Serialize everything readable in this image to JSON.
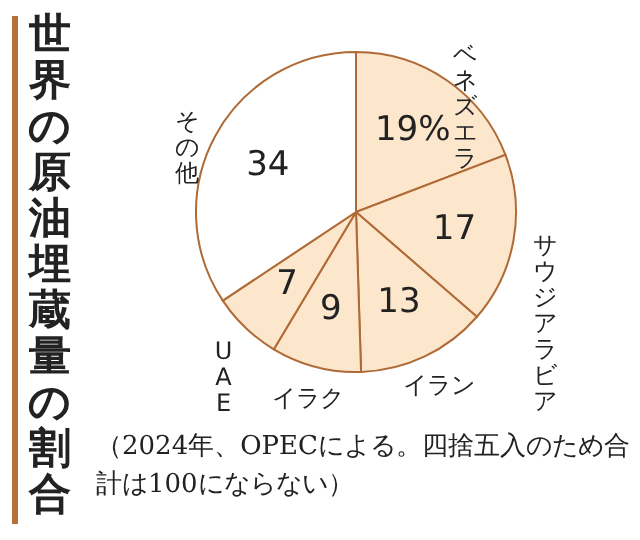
{
  "chart_data": {
    "type": "pie",
    "title": "世界の原油埋蔵量の割合",
    "categories": [
      "ベネズエラ",
      "サウジアラビア",
      "イラン",
      "イラク",
      "UAE",
      "その他"
    ],
    "values": [
      19,
      17,
      13,
      9,
      7,
      34
    ],
    "value_labels": [
      "19%",
      "17",
      "13",
      "9",
      "7",
      "34"
    ],
    "colors": [
      "#fce6cc",
      "#fce6cc",
      "#fce6cc",
      "#fce6cc",
      "#fce6cc",
      "#ffffff"
    ],
    "annotations": [
      "（2024年、OPECによる。四捨五入のため合計は100にならない）"
    ]
  }
}
